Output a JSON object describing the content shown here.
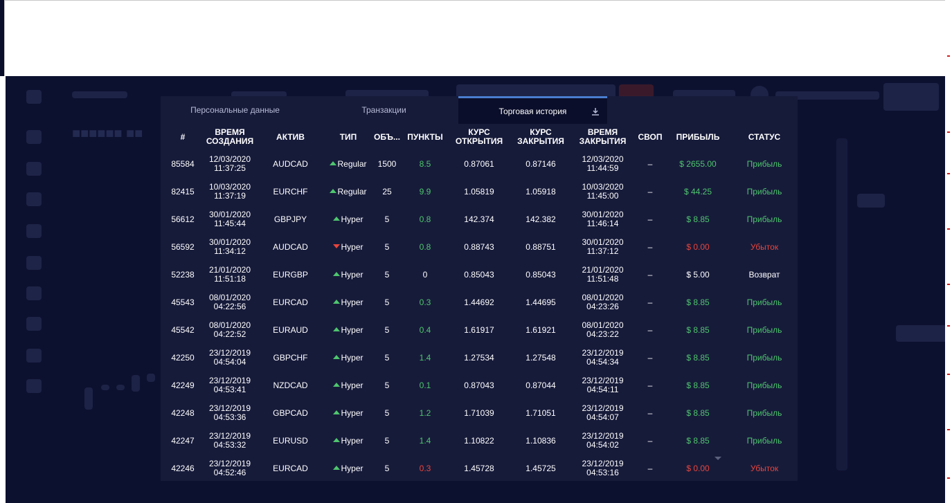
{
  "tabs": [
    {
      "label": "Персональные данные",
      "active": false
    },
    {
      "label": "Транзакции",
      "active": false
    },
    {
      "label": "Торговая история",
      "active": true
    }
  ],
  "download_icon": "download-icon",
  "columns": {
    "id": "#",
    "created_1": "ВРЕМЯ",
    "created_2": "СОЗДАНИЯ",
    "asset": "АКТИВ",
    "type": "ТИП",
    "volume": "ОБЪ...",
    "points": "ПУНКТЫ",
    "open_1": "КУРС",
    "open_2": "ОТКРЫТИЯ",
    "close_1": "КУРС",
    "close_2": "ЗАКРЫТИЯ",
    "closed_1": "ВРЕМЯ",
    "closed_2": "ЗАКРЫТИЯ",
    "swap": "СВОП",
    "profit": "ПРИБЫЛЬ",
    "status": "СТАТУС"
  },
  "rows": [
    {
      "id": "85584",
      "cdate": "12/03/2020",
      "ctime": "11:37:25",
      "asset": "AUDCAD",
      "dir": "up",
      "type": "Regular",
      "volume": "1500",
      "points": "8.5",
      "points_color": "green",
      "open": "0.87061",
      "close": "0.87146",
      "xdate": "12/03/2020",
      "xtime": "11:44:59",
      "swap": "–",
      "profit": "$ 2655.00",
      "profit_color": "green",
      "status": "Прибыль",
      "status_color": "green"
    },
    {
      "id": "82415",
      "cdate": "10/03/2020",
      "ctime": "11:37:19",
      "asset": "EURCHF",
      "dir": "up",
      "type": "Regular",
      "volume": "25",
      "points": "9.9",
      "points_color": "green",
      "open": "1.05819",
      "close": "1.05918",
      "xdate": "10/03/2020",
      "xtime": "11:45:00",
      "swap": "–",
      "profit": "$ 44.25",
      "profit_color": "green",
      "status": "Прибыль",
      "status_color": "green"
    },
    {
      "id": "56612",
      "cdate": "30/01/2020",
      "ctime": "11:45:44",
      "asset": "GBPJPY",
      "dir": "up",
      "type": "Hyper",
      "volume": "5",
      "points": "0.8",
      "points_color": "green",
      "open": "142.374",
      "close": "142.382",
      "xdate": "30/01/2020",
      "xtime": "11:46:14",
      "swap": "–",
      "profit": "$ 8.85",
      "profit_color": "green",
      "status": "Прибыль",
      "status_color": "green"
    },
    {
      "id": "56592",
      "cdate": "30/01/2020",
      "ctime": "11:34:12",
      "asset": "AUDCAD",
      "dir": "down",
      "type": "Hyper",
      "volume": "5",
      "points": "0.8",
      "points_color": "green",
      "open": "0.88743",
      "close": "0.88751",
      "xdate": "30/01/2020",
      "xtime": "11:37:12",
      "swap": "–",
      "profit": "$ 0.00",
      "profit_color": "red",
      "status": "Убыток",
      "status_color": "red"
    },
    {
      "id": "52238",
      "cdate": "21/01/2020",
      "ctime": "11:51:18",
      "asset": "EURGBP",
      "dir": "up",
      "type": "Hyper",
      "volume": "5",
      "points": "0",
      "points_color": "white",
      "open": "0.85043",
      "close": "0.85043",
      "xdate": "21/01/2020",
      "xtime": "11:51:48",
      "swap": "–",
      "profit": "$ 5.00",
      "profit_color": "white",
      "status": "Возврат",
      "status_color": "white"
    },
    {
      "id": "45543",
      "cdate": "08/01/2020",
      "ctime": "04:22:56",
      "asset": "EURCAD",
      "dir": "up",
      "type": "Hyper",
      "volume": "5",
      "points": "0.3",
      "points_color": "green",
      "open": "1.44692",
      "close": "1.44695",
      "xdate": "08/01/2020",
      "xtime": "04:23:26",
      "swap": "–",
      "profit": "$ 8.85",
      "profit_color": "green",
      "status": "Прибыль",
      "status_color": "green"
    },
    {
      "id": "45542",
      "cdate": "08/01/2020",
      "ctime": "04:22:52",
      "asset": "EURAUD",
      "dir": "up",
      "type": "Hyper",
      "volume": "5",
      "points": "0.4",
      "points_color": "green",
      "open": "1.61917",
      "close": "1.61921",
      "xdate": "08/01/2020",
      "xtime": "04:23:22",
      "swap": "–",
      "profit": "$ 8.85",
      "profit_color": "green",
      "status": "Прибыль",
      "status_color": "green"
    },
    {
      "id": "42250",
      "cdate": "23/12/2019",
      "ctime": "04:54:04",
      "asset": "GBPCHF",
      "dir": "up",
      "type": "Hyper",
      "volume": "5",
      "points": "1.4",
      "points_color": "green",
      "open": "1.27534",
      "close": "1.27548",
      "xdate": "23/12/2019",
      "xtime": "04:54:34",
      "swap": "–",
      "profit": "$ 8.85",
      "profit_color": "green",
      "status": "Прибыль",
      "status_color": "green"
    },
    {
      "id": "42249",
      "cdate": "23/12/2019",
      "ctime": "04:53:41",
      "asset": "NZDCAD",
      "dir": "up",
      "type": "Hyper",
      "volume": "5",
      "points": "0.1",
      "points_color": "green",
      "open": "0.87043",
      "close": "0.87044",
      "xdate": "23/12/2019",
      "xtime": "04:54:11",
      "swap": "–",
      "profit": "$ 8.85",
      "profit_color": "green",
      "status": "Прибыль",
      "status_color": "green"
    },
    {
      "id": "42248",
      "cdate": "23/12/2019",
      "ctime": "04:53:36",
      "asset": "GBPCAD",
      "dir": "up",
      "type": "Hyper",
      "volume": "5",
      "points": "1.2",
      "points_color": "green",
      "open": "1.71039",
      "close": "1.71051",
      "xdate": "23/12/2019",
      "xtime": "04:54:07",
      "swap": "–",
      "profit": "$ 8.85",
      "profit_color": "green",
      "status": "Прибыль",
      "status_color": "green"
    },
    {
      "id": "42247",
      "cdate": "23/12/2019",
      "ctime": "04:53:32",
      "asset": "EURUSD",
      "dir": "up",
      "type": "Hyper",
      "volume": "5",
      "points": "1.4",
      "points_color": "green",
      "open": "1.10822",
      "close": "1.10836",
      "xdate": "23/12/2019",
      "xtime": "04:54:02",
      "swap": "–",
      "profit": "$ 8.85",
      "profit_color": "green",
      "status": "Прибыль",
      "status_color": "green"
    },
    {
      "id": "42246",
      "cdate": "23/12/2019",
      "ctime": "04:52:46",
      "asset": "EURCAD",
      "dir": "up",
      "type": "Hyper",
      "volume": "5",
      "points": "0.3",
      "points_color": "red",
      "open": "1.45728",
      "close": "1.45725",
      "xdate": "23/12/2019",
      "xtime": "04:53:16",
      "swap": "–",
      "profit": "$ 0.00",
      "profit_color": "red",
      "status": "Убыток",
      "status_color": "red"
    }
  ]
}
